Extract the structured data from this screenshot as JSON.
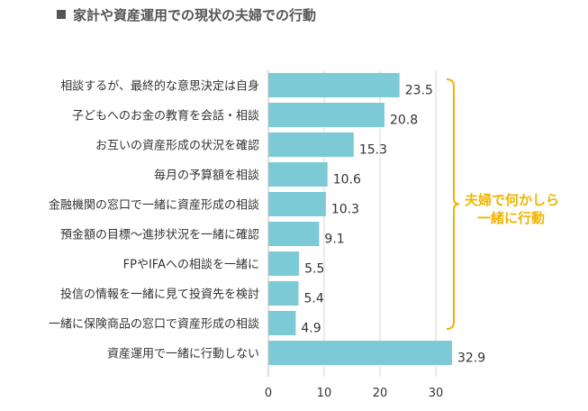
{
  "chart_data": {
    "type": "bar",
    "orientation": "horizontal",
    "title": "家計や資産運用での現状の夫婦での行動",
    "categories": [
      "相談するが、最終的な意思決定は自身",
      "子どもへのお金の教育を会話・相談",
      "お互いの資産形成の状況を確認",
      "毎月の予算額を相談",
      "金融機関の窓口で一緒に資産形成の相談",
      "預金額の目標～進捗状況を一緒に確認",
      "FPやIFAへの相談を一緒に",
      "投信の情報を一緒に見て投資先を検討",
      "一緒に保険商品の窓口で資産形成の相談",
      "資産運用で一緒に行動しない"
    ],
    "values": [
      23.5,
      20.8,
      15.3,
      10.6,
      10.3,
      9.1,
      5.5,
      5.4,
      4.9,
      32.9
    ],
    "value_labels": [
      "23.5",
      "20.8",
      "15.3",
      "10.6",
      "10.3",
      "9.1",
      "5.5",
      "5.4",
      "4.9",
      "32.9"
    ],
    "xlim": [
      0,
      35
    ],
    "xticks": [
      0,
      10,
      20,
      30
    ],
    "xtick_labels": [
      "0",
      "10",
      "20",
      "30"
    ],
    "grid": true,
    "bar_color": "#7ccad6",
    "annotation": {
      "text_line1": "夫婦で何かしら",
      "text_line2": "一緒に行動",
      "brackets_categories": [
        0,
        8
      ],
      "color": "#f0b400"
    }
  }
}
